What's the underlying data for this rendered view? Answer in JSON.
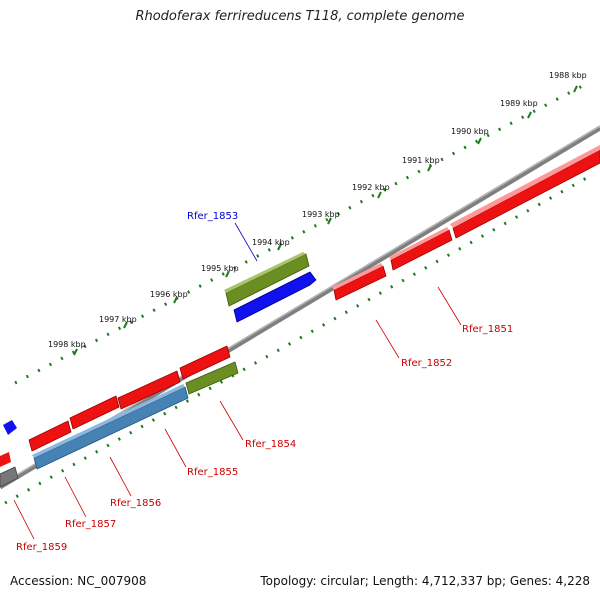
{
  "title": "Rhodoferax ferrireducens T118, complete genome",
  "accession_text": "Accession: NC_007908",
  "summary_text": "Topology: circular; Length: 4,712,337 bp; Genes: 4,228",
  "colors": {
    "backbone": "#7f7f7f",
    "ticks": "#1f7a1f",
    "gene_red": "#ee1111",
    "gene_blue": "#1111ee",
    "gene_green": "#6b8e23",
    "gene_steelblue": "#4682b4",
    "gene_gray": "#777777",
    "label_red": "#cc0000",
    "label_blue": "#0000cc"
  },
  "scale_labels": [
    "1988 kbp",
    "1989 kbp",
    "1990 kbp",
    "1991 kbp",
    "1992 kbp",
    "1993 kbp",
    "1994 kbp",
    "1995 kbp",
    "1996 kbp",
    "1997 kbp",
    "1998 kbp"
  ],
  "gene_labels": [
    "Rfer_1853",
    "Rfer_1851",
    "Rfer_1852",
    "Rfer_1854",
    "Rfer_1855",
    "Rfer_1856",
    "Rfer_1857",
    "Rfer_1859"
  ]
}
